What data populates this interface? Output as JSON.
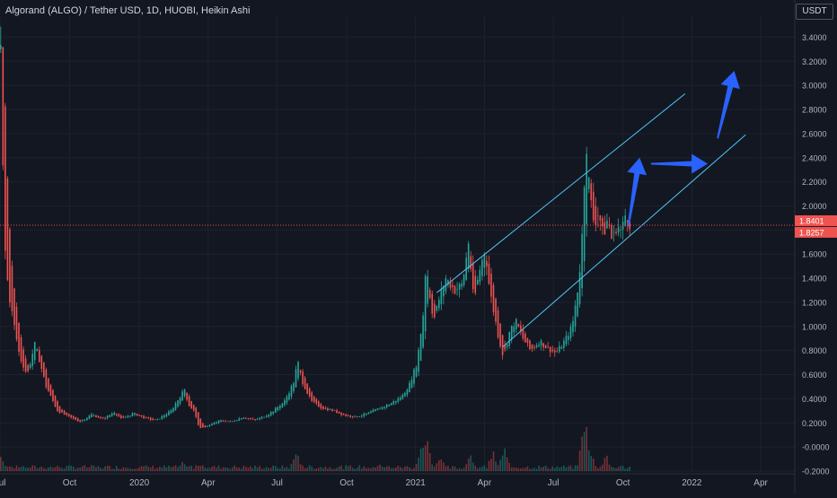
{
  "header": {
    "symbol": "Algorand (ALGO) / Tether USD, 1D, HUOBI, Heikin Ashi",
    "currency": "USDT"
  },
  "colors": {
    "background": "#131722",
    "up": "#26a69a",
    "down": "#ef5350",
    "channel": "#4fc3f7",
    "arrow": "#2962ff",
    "grid": "#1e222d",
    "text": "#b2b5be"
  },
  "chart_data": {
    "type": "candlestick",
    "y_ticks": [
      "3.4000",
      "3.2000",
      "3.0000",
      "2.8000",
      "2.6000",
      "2.4000",
      "2.2000",
      "2.0000",
      "1.8000",
      "1.6000",
      "1.4000",
      "1.2000",
      "1.0000",
      "0.8000",
      "0.6000",
      "0.4000",
      "0.2000",
      "-0.0000",
      "-0.2000"
    ],
    "x_ticks": [
      "Jul",
      "Oct",
      "2020",
      "Apr",
      "Jul",
      "Oct",
      "2021",
      "Apr",
      "Jul",
      "Oct",
      "2022",
      "Apr"
    ],
    "ylim": [
      -0.2,
      3.5
    ],
    "xlim": [
      0,
      1050
    ],
    "tick_x": [
      0,
      92,
      184,
      275,
      366,
      458,
      549,
      640,
      731,
      823,
      914,
      1005
    ],
    "price_labels": [
      {
        "text": "1.8401",
        "value": 1.8401
      },
      {
        "text": "1.8257",
        "value": 1.8257
      }
    ],
    "price_path": [
      [
        0,
        3.3
      ],
      [
        2,
        2.6
      ],
      [
        5,
        1.7
      ],
      [
        10,
        1.3
      ],
      [
        18,
        1.0
      ],
      [
        25,
        0.75
      ],
      [
        35,
        0.6
      ],
      [
        45,
        0.85
      ],
      [
        50,
        0.75
      ],
      [
        60,
        0.5
      ],
      [
        75,
        0.3
      ],
      [
        90,
        0.25
      ],
      [
        105,
        0.21
      ],
      [
        120,
        0.27
      ],
      [
        135,
        0.23
      ],
      [
        150,
        0.29
      ],
      [
        160,
        0.23
      ],
      [
        175,
        0.28
      ],
      [
        190,
        0.24
      ],
      [
        205,
        0.22
      ],
      [
        215,
        0.26
      ],
      [
        225,
        0.3
      ],
      [
        235,
        0.4
      ],
      [
        243,
        0.48
      ],
      [
        248,
        0.35
      ],
      [
        255,
        0.3
      ],
      [
        263,
        0.15
      ],
      [
        275,
        0.18
      ],
      [
        290,
        0.22
      ],
      [
        305,
        0.21
      ],
      [
        320,
        0.25
      ],
      [
        335,
        0.22
      ],
      [
        350,
        0.26
      ],
      [
        360,
        0.3
      ],
      [
        375,
        0.38
      ],
      [
        388,
        0.55
      ],
      [
        392,
        0.72
      ],
      [
        398,
        0.55
      ],
      [
        410,
        0.38
      ],
      [
        425,
        0.32
      ],
      [
        440,
        0.3
      ],
      [
        455,
        0.26
      ],
      [
        470,
        0.25
      ],
      [
        485,
        0.28
      ],
      [
        500,
        0.32
      ],
      [
        515,
        0.36
      ],
      [
        530,
        0.42
      ],
      [
        540,
        0.52
      ],
      [
        550,
        0.7
      ],
      [
        558,
        1.1
      ],
      [
        562,
        1.55
      ],
      [
        566,
        1.3
      ],
      [
        572,
        1.05
      ],
      [
        580,
        1.25
      ],
      [
        588,
        1.4
      ],
      [
        600,
        1.3
      ],
      [
        610,
        1.35
      ],
      [
        618,
        1.7
      ],
      [
        625,
        1.2
      ],
      [
        632,
        1.45
      ],
      [
        640,
        1.65
      ],
      [
        646,
        1.3
      ],
      [
        652,
        1.1
      ],
      [
        658,
        0.9
      ],
      [
        664,
        0.75
      ],
      [
        672,
        0.95
      ],
      [
        680,
        1.05
      ],
      [
        690,
        0.9
      ],
      [
        700,
        0.8
      ],
      [
        712,
        0.88
      ],
      [
        722,
        0.82
      ],
      [
        734,
        0.78
      ],
      [
        745,
        0.88
      ],
      [
        755,
        1.0
      ],
      [
        762,
        1.3
      ],
      [
        767,
        1.6
      ],
      [
        771,
        2.2
      ],
      [
        774,
        2.5
      ],
      [
        778,
        2.1
      ],
      [
        784,
        1.85
      ],
      [
        790,
        1.95
      ],
      [
        796,
        1.75
      ],
      [
        802,
        1.9
      ],
      [
        808,
        1.7
      ],
      [
        814,
        1.85
      ],
      [
        820,
        1.78
      ],
      [
        826,
        1.95
      ],
      [
        832,
        1.84
      ]
    ],
    "volume_ylim": [
      0,
      1
    ],
    "volume_spikes": [
      [
        0,
        0.35
      ],
      [
        2,
        0.25
      ],
      [
        30,
        0.15
      ],
      [
        240,
        0.2
      ],
      [
        262,
        0.18
      ],
      [
        390,
        0.45
      ],
      [
        500,
        0.2
      ],
      [
        555,
        0.5
      ],
      [
        562,
        0.8
      ],
      [
        580,
        0.35
      ],
      [
        620,
        0.4
      ],
      [
        650,
        0.45
      ],
      [
        665,
        0.55
      ],
      [
        770,
        0.95
      ],
      [
        774,
        1.0
      ],
      [
        780,
        0.4
      ],
      [
        800,
        0.35
      ]
    ],
    "channel_lines": [
      {
        "from": [
          577,
          1.28
        ],
        "to": [
          905,
          2.93
        ]
      },
      {
        "from": [
          664,
          0.83
        ],
        "to": [
          985,
          2.59
        ]
      }
    ],
    "arrows": [
      {
        "from": [
          830,
          1.83
        ],
        "to": [
          845,
          2.4
        ]
      },
      {
        "from": [
          860,
          2.35
        ],
        "to": [
          935,
          2.35
        ]
      },
      {
        "from": [
          948,
          2.56
        ],
        "to": [
          970,
          3.12
        ]
      }
    ]
  }
}
